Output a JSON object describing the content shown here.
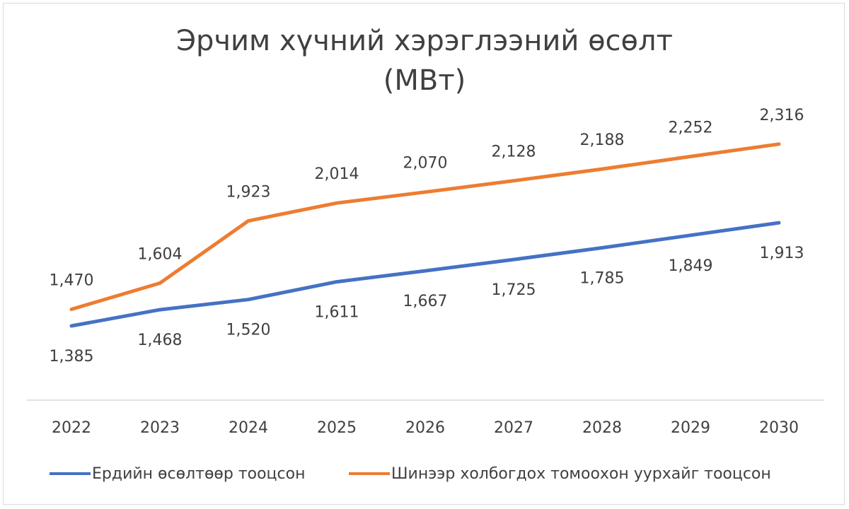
{
  "chart_data": {
    "type": "line",
    "title": "Эрчим хүчний хэрэглээний өсөлт",
    "subtitle": "(МВт)",
    "categories": [
      "2022",
      "2023",
      "2024",
      "2025",
      "2026",
      "2027",
      "2028",
      "2029",
      "2030"
    ],
    "series": [
      {
        "name": "Ердийн өсөлтөөр тооцсон",
        "color": "#4472c4",
        "values": [
          1385,
          1468,
          1520,
          1611,
          1667,
          1725,
          1785,
          1849,
          1913
        ],
        "labels": [
          "1,385",
          "1,468",
          "1,520",
          "1,611",
          "1,667",
          "1,725",
          "1,785",
          "1,849",
          "1,913"
        ],
        "label_position": "below"
      },
      {
        "name": "Шинээр холбогдох томоохон уурхайг тооцсон",
        "color": "#ed7d31",
        "values": [
          1470,
          1604,
          1923,
          2014,
          2070,
          2128,
          2188,
          2252,
          2316
        ],
        "labels": [
          "1,470",
          "1,604",
          "1,923",
          "2,014",
          "2,070",
          "2,128",
          "2,188",
          "2,252",
          "2,316"
        ],
        "label_position": "above"
      }
    ],
    "grid": false,
    "y_axis_visible": false,
    "legend": "bottom"
  }
}
